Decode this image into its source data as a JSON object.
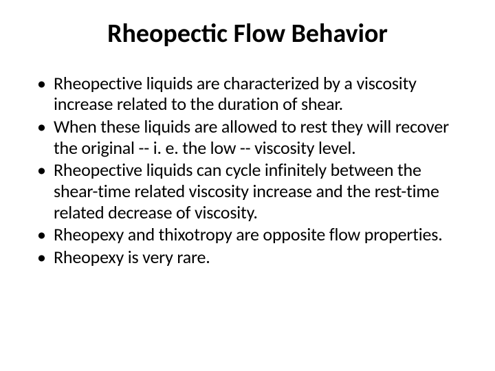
{
  "slide": {
    "title": "Rheopectic Flow Behavior",
    "title_fontsize": 38,
    "title_weight": 700,
    "title_color": "#000000",
    "body_fontsize": 26,
    "body_color": "#000000",
    "background_color": "#ffffff",
    "bullets": [
      "Rheopective liquids are characterized by a viscosity increase related to the duration of shear.",
      "When these liquids are allowed to rest they will recover the original -- i. e. the low -- viscosity level.",
      "Rheopective liquids can cycle infinitely between the shear-time related viscosity increase and the rest-time related decrease of viscosity.",
      "Rheopexy and thixotropy are opposite flow properties.",
      "Rheopexy is very rare."
    ]
  }
}
